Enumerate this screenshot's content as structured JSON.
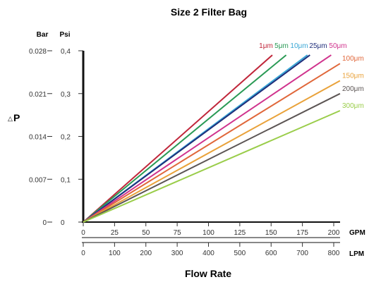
{
  "chart_data": {
    "type": "line",
    "title": "Size 2 Filter Bag",
    "xlabel": "Flow Rate",
    "ylabel": "P",
    "ylabel_symbol": "△",
    "y_left": {
      "unit": "Bar",
      "ticks": [
        {
          "value": 0,
          "label": "0"
        },
        {
          "value": 0.007,
          "label": "0.007"
        },
        {
          "value": 0.014,
          "label": "0.014"
        },
        {
          "value": 0.021,
          "label": "0.021"
        },
        {
          "value": 0.028,
          "label": "0.028"
        }
      ]
    },
    "y_right": {
      "unit": "Psi",
      "range": [
        0,
        0.4
      ],
      "ticks": [
        {
          "value": 0,
          "label": "0"
        },
        {
          "value": 0.1,
          "label": "0,1"
        },
        {
          "value": 0.2,
          "label": "0,2"
        },
        {
          "value": 0.3,
          "label": "0,3"
        },
        {
          "value": 0.4,
          "label": "0,4"
        }
      ]
    },
    "x_gpm": {
      "unit": "GPM",
      "range": [
        0,
        200
      ],
      "ticks": [
        0,
        25,
        50,
        75,
        100,
        125,
        150,
        175,
        200
      ]
    },
    "x_lpm": {
      "unit": "LPM",
      "range": [
        0,
        800
      ],
      "ticks": [
        0,
        100,
        200,
        300,
        400,
        500,
        600,
        700,
        800
      ]
    },
    "series": [
      {
        "name": "1μm",
        "color": "#c0263a",
        "points": [
          [
            0,
            0
          ],
          [
            151,
            0.39
          ]
        ]
      },
      {
        "name": "5μm",
        "color": "#2a9a55",
        "points": [
          [
            0,
            0
          ],
          [
            162,
            0.39
          ]
        ]
      },
      {
        "name": "10μm",
        "color": "#3aa7d6",
        "points": [
          [
            0,
            0
          ],
          [
            179,
            0.39
          ]
        ]
      },
      {
        "name": "25μm",
        "color": "#1f2e7a",
        "points": [
          [
            0,
            0
          ],
          [
            181,
            0.39
          ]
        ]
      },
      {
        "name": "50μm",
        "color": "#d0338d",
        "points": [
          [
            0,
            0
          ],
          [
            198,
            0.39
          ]
        ]
      },
      {
        "name": "100μm",
        "color": "#e0673a",
        "points": [
          [
            0,
            0
          ],
          [
            205,
            0.37
          ]
        ]
      },
      {
        "name": "150μm",
        "color": "#e9a23a",
        "points": [
          [
            0,
            0
          ],
          [
            205,
            0.33
          ]
        ]
      },
      {
        "name": "200μm",
        "color": "#5c5554",
        "points": [
          [
            0,
            0
          ],
          [
            205,
            0.3
          ]
        ]
      },
      {
        "name": "300μm",
        "color": "#9acd4a",
        "points": [
          [
            0,
            0
          ],
          [
            205,
            0.26
          ]
        ]
      }
    ],
    "grid": false,
    "legend": "labels at line ends"
  }
}
